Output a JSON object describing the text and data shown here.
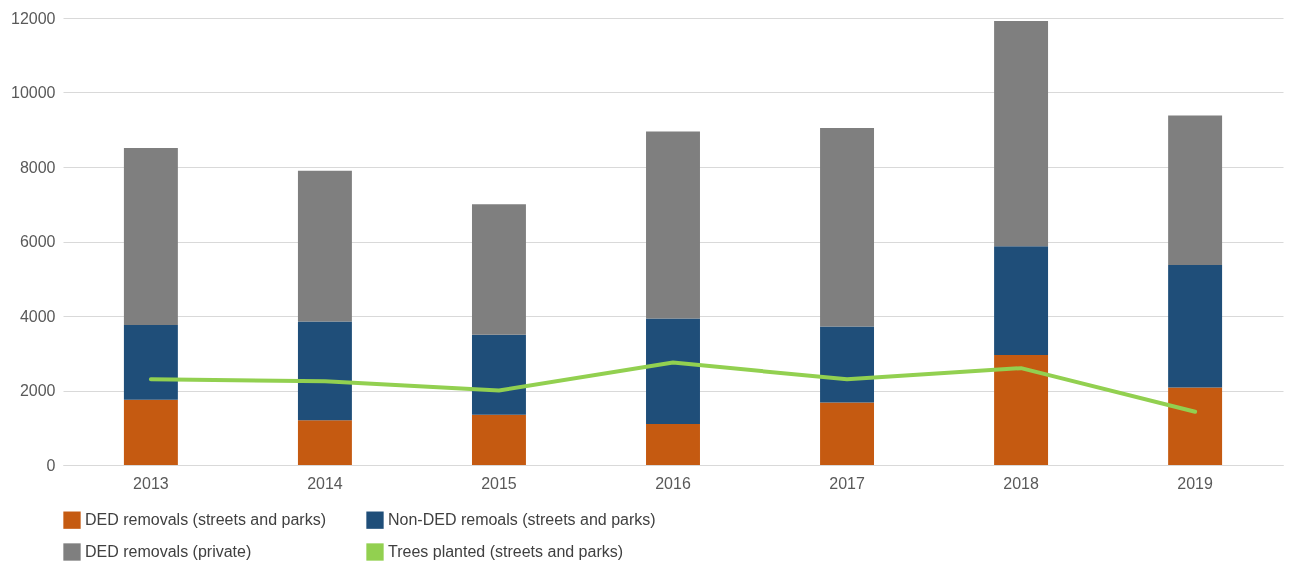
{
  "chart_data": {
    "type": "bar",
    "stacked": true,
    "categories": [
      "2013",
      "2014",
      "2015",
      "2016",
      "2017",
      "2018",
      "2019"
    ],
    "series": [
      {
        "name": "DED removals (streets and parks)",
        "color": "#c55a11",
        "values": [
          1750,
          1200,
          1350,
          1100,
          1680,
          2950,
          2080
        ]
      },
      {
        "name": "Non-DED remoals (streets and parks)",
        "color": "#1f4e79",
        "values": [
          2010,
          2650,
          2150,
          2830,
          2040,
          2920,
          3290
        ]
      },
      {
        "name": "DED removals (private)",
        "color": "#7f7f7f",
        "values": [
          4750,
          4050,
          3500,
          5020,
          5330,
          6050,
          4010
        ]
      },
      {
        "name": "Trees planted (streets and parks)",
        "type": "line",
        "color": "#92d050",
        "values": [
          2300,
          2250,
          2000,
          2750,
          2300,
          2600,
          1430
        ]
      }
    ],
    "ylim": [
      0,
      12000
    ],
    "yticks": [
      0,
      2000,
      4000,
      6000,
      8000,
      10000,
      12000
    ],
    "grid": "y",
    "legend": "bottom",
    "marker": "none",
    "line_style": "solid"
  }
}
